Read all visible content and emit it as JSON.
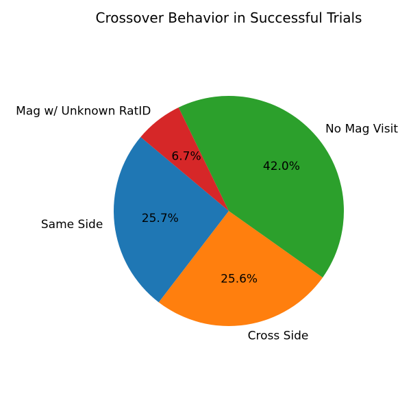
{
  "chart_data": {
    "type": "pie",
    "title": "Crossover Behavior in Successful Trials",
    "start_angle_deg": 140,
    "direction": "counterclockwise",
    "slices": [
      {
        "label": "Same Side",
        "value": 25.7,
        "pct_label": "25.7%",
        "color": "#1f77b4"
      },
      {
        "label": "Cross Side",
        "value": 25.6,
        "pct_label": "25.6%",
        "color": "#ff7f0e"
      },
      {
        "label": "No Mag Visit",
        "value": 42.0,
        "pct_label": "42.0%",
        "color": "#2ca02c"
      },
      {
        "label": "Mag w/ Unknown RatID",
        "value": 6.7,
        "pct_label": "6.7%",
        "color": "#d62728"
      }
    ]
  }
}
